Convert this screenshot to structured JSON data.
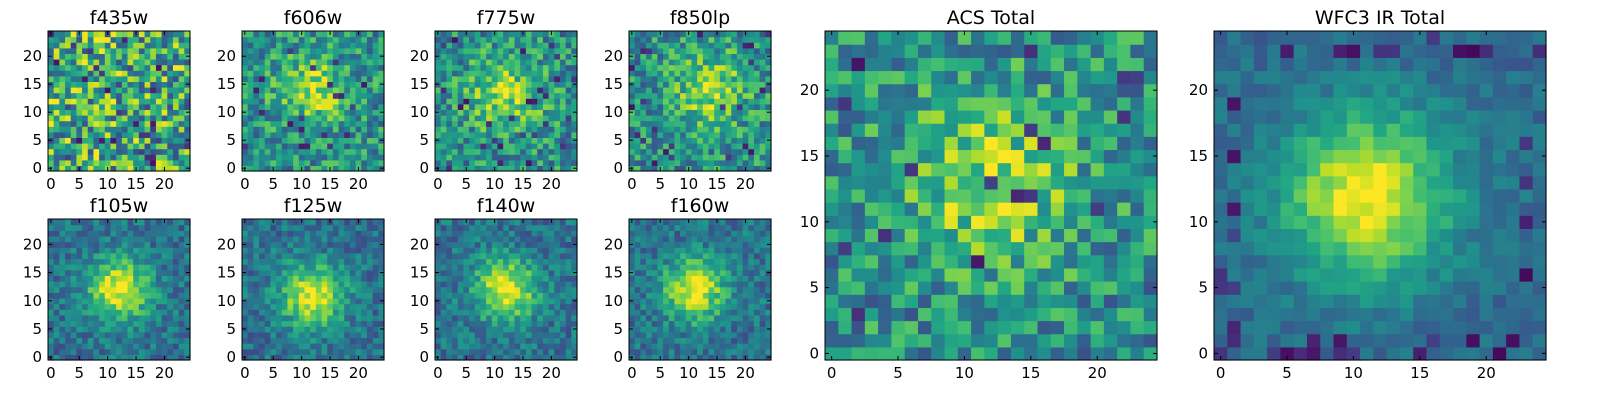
{
  "chart_data": [
    {
      "type": "heatmap",
      "title": "f435w",
      "xlim": [
        -0.5,
        24.5
      ],
      "ylim": [
        -0.5,
        24.5
      ],
      "xticks": [
        0,
        5,
        10,
        15,
        20
      ],
      "yticks": [
        0,
        5,
        10,
        15,
        20
      ],
      "pattern": "noise",
      "peak": [
        12,
        12
      ],
      "seed": 1
    },
    {
      "type": "heatmap",
      "title": "f606w",
      "xlim": [
        -0.5,
        24.5
      ],
      "ylim": [
        -0.5,
        24.5
      ],
      "xticks": [
        0,
        5,
        10,
        15,
        20
      ],
      "yticks": [
        0,
        5,
        10,
        15,
        20
      ],
      "pattern": "faint-source",
      "peak": [
        12,
        14
      ],
      "seed": 2
    },
    {
      "type": "heatmap",
      "title": "f775w",
      "xlim": [
        -0.5,
        24.5
      ],
      "ylim": [
        -0.5,
        24.5
      ],
      "xticks": [
        0,
        5,
        10,
        15,
        20
      ],
      "yticks": [
        0,
        5,
        10,
        15,
        20
      ],
      "pattern": "faint-source",
      "peak": [
        12,
        13
      ],
      "seed": 3
    },
    {
      "type": "heatmap",
      "title": "f850lp",
      "xlim": [
        -0.5,
        24.5
      ],
      "ylim": [
        -0.5,
        24.5
      ],
      "xticks": [
        0,
        5,
        10,
        15,
        20
      ],
      "yticks": [
        0,
        5,
        10,
        15,
        20
      ],
      "pattern": "faint-source",
      "peak": [
        14,
        14
      ],
      "seed": 4
    },
    {
      "type": "heatmap",
      "title": "f105w",
      "xlim": [
        -0.5,
        24.5
      ],
      "ylim": [
        -0.5,
        24.5
      ],
      "xticks": [
        0,
        5,
        10,
        15,
        20
      ],
      "yticks": [
        0,
        5,
        10,
        15,
        20
      ],
      "pattern": "source",
      "peak": [
        12,
        12
      ],
      "seed": 5
    },
    {
      "type": "heatmap",
      "title": "f125w",
      "xlim": [
        -0.5,
        24.5
      ],
      "ylim": [
        -0.5,
        24.5
      ],
      "xticks": [
        0,
        5,
        10,
        15,
        20
      ],
      "yticks": [
        0,
        5,
        10,
        15,
        20
      ],
      "pattern": "source",
      "peak": [
        12,
        11
      ],
      "seed": 6
    },
    {
      "type": "heatmap",
      "title": "f140w",
      "xlim": [
        -0.5,
        24.5
      ],
      "ylim": [
        -0.5,
        24.5
      ],
      "xticks": [
        0,
        5,
        10,
        15,
        20
      ],
      "yticks": [
        0,
        5,
        10,
        15,
        20
      ],
      "pattern": "source",
      "peak": [
        12,
        12
      ],
      "seed": 7
    },
    {
      "type": "heatmap",
      "title": "f160w",
      "xlim": [
        -0.5,
        24.5
      ],
      "ylim": [
        -0.5,
        24.5
      ],
      "xticks": [
        0,
        5,
        10,
        15,
        20
      ],
      "yticks": [
        0,
        5,
        10,
        15,
        20
      ],
      "pattern": "source",
      "peak": [
        11,
        12
      ],
      "seed": 8
    },
    {
      "type": "heatmap",
      "title": "ACS Total",
      "xlim": [
        -0.5,
        24.5
      ],
      "ylim": [
        -0.5,
        24.5
      ],
      "xticks": [
        0,
        5,
        10,
        15,
        20
      ],
      "yticks": [
        0,
        5,
        10,
        15,
        20
      ],
      "pattern": "faint-source",
      "peak": [
        12,
        13
      ],
      "seed": 9
    },
    {
      "type": "heatmap",
      "title": "WFC3 IR Total",
      "xlim": [
        -0.5,
        24.5
      ],
      "ylim": [
        -0.5,
        24.5
      ],
      "xticks": [
        0,
        5,
        10,
        15,
        20
      ],
      "yticks": [
        0,
        5,
        10,
        15,
        20
      ],
      "pattern": "smooth-source",
      "peak": [
        11,
        12
      ],
      "seed": 10
    }
  ]
}
